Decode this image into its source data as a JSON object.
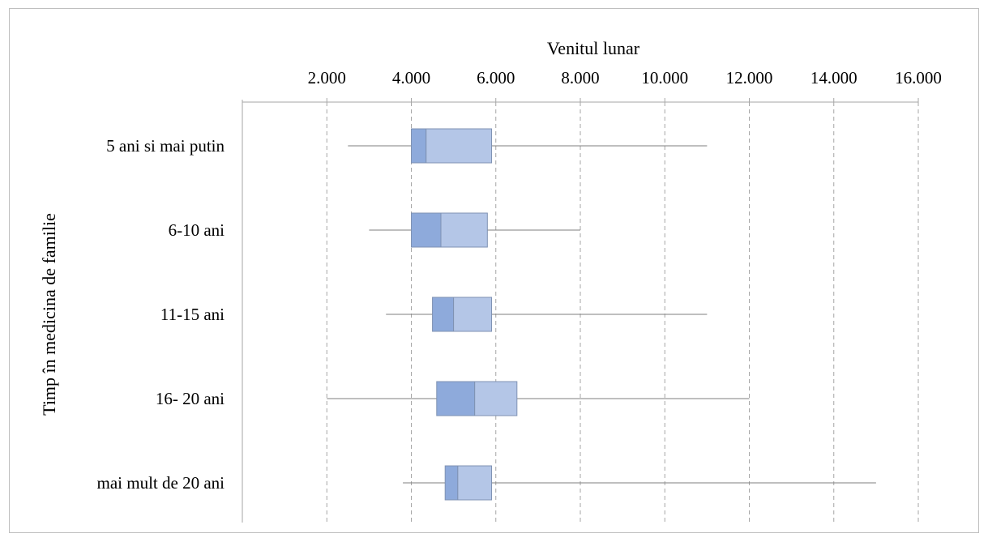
{
  "chart_data": {
    "type": "boxplot",
    "orientation": "horizontal",
    "xlabel": "Venitul lunar",
    "ylabel": "Timp în medicina de familie",
    "xlim": [
      0,
      16000
    ],
    "x_ticks": [
      2000,
      4000,
      6000,
      8000,
      10000,
      12000,
      14000,
      16000
    ],
    "x_tick_labels": [
      "2.000",
      "4.000",
      "6.000",
      "8.000",
      "10.000",
      "12.000",
      "14.000",
      "16.000"
    ],
    "x_axis_position": "top",
    "grid": "vertical dashed",
    "categories": [
      "5 ani si mai putin",
      "6-10 ani",
      "11-15 ani",
      "16- 20 ani",
      "mai mult de 20 ani"
    ],
    "boxes": [
      {
        "min": 2500,
        "q1": 4000,
        "median": 4350,
        "q3": 5900,
        "max": 11000
      },
      {
        "min": 3000,
        "q1": 4000,
        "median": 4700,
        "q3": 5800,
        "max": 8000
      },
      {
        "min": 3400,
        "q1": 4500,
        "median": 5000,
        "q3": 5900,
        "max": 11000
      },
      {
        "min": 2000,
        "q1": 4600,
        "median": 5500,
        "q3": 6500,
        "max": 12000
      },
      {
        "min": 3800,
        "q1": 4800,
        "median": 5100,
        "q3": 5900,
        "max": 15000
      }
    ],
    "colors": {
      "lower_box": "#8eaadb",
      "upper_box": "#b4c6e7",
      "box_edge": "#7f92b3",
      "whisker": "#7f7f7f",
      "grid": "#a6a6a6",
      "axis": "#a6a6a6"
    }
  }
}
